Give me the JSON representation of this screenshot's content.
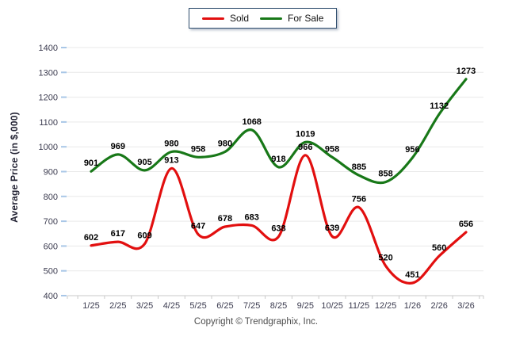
{
  "chart_data": {
    "type": "line",
    "title": "",
    "xlabel": "",
    "ylabel": "Average Price (in $,000)",
    "ylim": [
      400,
      1400
    ],
    "ytick_step": 100,
    "grid": "horizontal",
    "legend_position": "top-center",
    "line_style": "smooth",
    "categories": [
      "1/25",
      "2/25",
      "3/25",
      "4/25",
      "5/25",
      "6/25",
      "7/25",
      "8/25",
      "9/25",
      "10/25",
      "11/25",
      "12/25",
      "1/26",
      "2/26",
      "3/26"
    ],
    "series": [
      {
        "name": "Sold",
        "color": "#e20f0f",
        "values": [
          602,
          617,
          609,
          913,
          647,
          678,
          683,
          638,
          966,
          639,
          756,
          520,
          451,
          560,
          656
        ]
      },
      {
        "name": "For Sale",
        "color": "#187818",
        "values": [
          901,
          969,
          905,
          980,
          958,
          980,
          1068,
          918,
          1019,
          958,
          885,
          858,
          956,
          1132,
          1273
        ]
      }
    ]
  },
  "footer": {
    "copyright": "Copyright © Trendgraphix, Inc."
  },
  "colors": {
    "grid": "#e9e9e9",
    "axis": "#c9c9c9",
    "y_tick": "#a9c7e7",
    "legend_border": "#2e4d6d",
    "background": "#ffffff"
  }
}
